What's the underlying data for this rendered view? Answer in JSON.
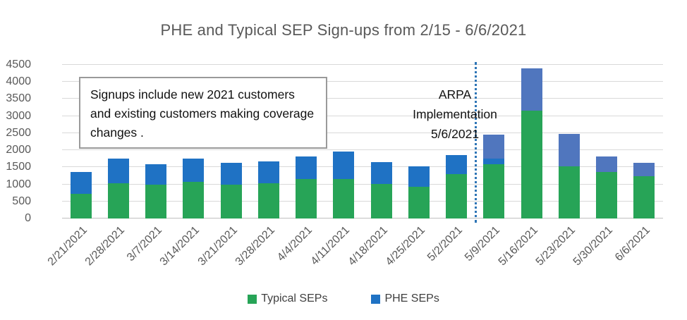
{
  "title": "PHE and Typical SEP Sign-ups from 2/15 - 6/6/2021",
  "annotation_box": {
    "text": "Signups include new 2021 customers and existing customers making coverage changes ."
  },
  "arpa_annotation": {
    "line1": "ARPA",
    "line2": "Implementation",
    "line3": "5/6/2021"
  },
  "legend": {
    "items": [
      {
        "label": "Typical SEPs",
        "color_key": "green"
      },
      {
        "label": "PHE SEPs",
        "color_key": "blue"
      }
    ]
  },
  "palette": {
    "green": "#27a457",
    "blue": "#1f72c4",
    "slate": "#5076be",
    "divider": "#2e75b6"
  },
  "chart_data": {
    "type": "bar",
    "stacked": true,
    "title": "PHE and Typical SEP Sign-ups from 2/15 - 6/6/2021",
    "xlabel": "",
    "ylabel": "",
    "ylim": [
      0,
      4500
    ],
    "ytick_step": 500,
    "grid": true,
    "legend_position": "bottom",
    "categories": [
      "2/21/2021",
      "2/28/2021",
      "3/7/2021",
      "3/14/2021",
      "3/21/2021",
      "3/28/2021",
      "4/4/2021",
      "4/11/2021",
      "4/18/2021",
      "4/25/2021",
      "5/2/2021",
      "5/9/2021",
      "5/16/2021",
      "5/23/2021",
      "5/30/2021",
      "6/6/2021"
    ],
    "series": [
      {
        "name": "Typical SEPs",
        "color_key": "green",
        "values": [
          720,
          1030,
          1000,
          1070,
          1000,
          1040,
          1150,
          1160,
          1010,
          930,
          1300,
          1600,
          3150,
          1530,
          1370,
          1230
        ]
      },
      {
        "name": "PHE SEPs",
        "color_key": "blue",
        "values": [
          640,
          720,
          580,
          690,
          640,
          630,
          670,
          810,
          640,
          600,
          560,
          860,
          1250,
          950,
          440,
          410
        ]
      }
    ],
    "annotations": [
      "Signups include new 2021 customers and existing customers making coverage changes .",
      "ARPA Implementation 5/6/2021 (dotted vertical line before 5/9/2021)"
    ],
    "bars": [
      {
        "date": "2/21/2021",
        "segments": [
          {
            "series": "Typical SEPs",
            "color_key": "green",
            "value": 720
          },
          {
            "series": "PHE SEPs",
            "color_key": "blue",
            "value": 640
          }
        ]
      },
      {
        "date": "2/28/2021",
        "segments": [
          {
            "series": "Typical SEPs",
            "color_key": "green",
            "value": 1030
          },
          {
            "series": "PHE SEPs",
            "color_key": "blue",
            "value": 720
          }
        ]
      },
      {
        "date": "3/7/2021",
        "segments": [
          {
            "series": "Typical SEPs",
            "color_key": "green",
            "value": 1000
          },
          {
            "series": "PHE SEPs",
            "color_key": "blue",
            "value": 580
          }
        ]
      },
      {
        "date": "3/14/2021",
        "segments": [
          {
            "series": "Typical SEPs",
            "color_key": "green",
            "value": 1070
          },
          {
            "series": "PHE SEPs",
            "color_key": "blue",
            "value": 690
          }
        ]
      },
      {
        "date": "3/21/2021",
        "segments": [
          {
            "series": "Typical SEPs",
            "color_key": "green",
            "value": 1000
          },
          {
            "series": "PHE SEPs",
            "color_key": "blue",
            "value": 640
          }
        ]
      },
      {
        "date": "3/28/2021",
        "segments": [
          {
            "series": "Typical SEPs",
            "color_key": "green",
            "value": 1040
          },
          {
            "series": "PHE SEPs",
            "color_key": "blue",
            "value": 630
          }
        ]
      },
      {
        "date": "4/4/2021",
        "segments": [
          {
            "series": "Typical SEPs",
            "color_key": "green",
            "value": 1150
          },
          {
            "series": "PHE SEPs",
            "color_key": "blue",
            "value": 670
          }
        ]
      },
      {
        "date": "4/11/2021",
        "segments": [
          {
            "series": "Typical SEPs",
            "color_key": "green",
            "value": 1160
          },
          {
            "series": "PHE SEPs",
            "color_key": "blue",
            "value": 810
          }
        ]
      },
      {
        "date": "4/18/2021",
        "segments": [
          {
            "series": "Typical SEPs",
            "color_key": "green",
            "value": 1010
          },
          {
            "series": "PHE SEPs",
            "color_key": "blue",
            "value": 640
          }
        ]
      },
      {
        "date": "4/25/2021",
        "segments": [
          {
            "series": "Typical SEPs",
            "color_key": "green",
            "value": 930
          },
          {
            "series": "PHE SEPs",
            "color_key": "blue",
            "value": 600
          }
        ]
      },
      {
        "date": "5/2/2021",
        "segments": [
          {
            "series": "Typical SEPs",
            "color_key": "green",
            "value": 1300
          },
          {
            "series": "PHE SEPs",
            "color_key": "blue",
            "value": 560
          }
        ]
      },
      {
        "date": "5/9/2021",
        "segments": [
          {
            "series": "Typical SEPs",
            "color_key": "green",
            "value": 1600
          },
          {
            "series": "PHE SEPs",
            "color_key": "blue",
            "value": 160
          },
          {
            "series": "PHE SEPs",
            "color_key": "slate",
            "value": 700
          }
        ]
      },
      {
        "date": "5/16/2021",
        "segments": [
          {
            "series": "Typical SEPs",
            "color_key": "green",
            "value": 3150
          },
          {
            "series": "PHE SEPs",
            "color_key": "slate",
            "value": 1250
          }
        ]
      },
      {
        "date": "5/23/2021",
        "segments": [
          {
            "series": "Typical SEPs",
            "color_key": "green",
            "value": 1530
          },
          {
            "series": "PHE SEPs",
            "color_key": "slate",
            "value": 950
          }
        ]
      },
      {
        "date": "5/30/2021",
        "segments": [
          {
            "series": "Typical SEPs",
            "color_key": "green",
            "value": 1370
          },
          {
            "series": "PHE SEPs",
            "color_key": "slate",
            "value": 440
          }
        ]
      },
      {
        "date": "6/6/2021",
        "segments": [
          {
            "series": "Typical SEPs",
            "color_key": "green",
            "value": 1230
          },
          {
            "series": "PHE SEPs",
            "color_key": "slate",
            "value": 410
          }
        ]
      }
    ]
  }
}
